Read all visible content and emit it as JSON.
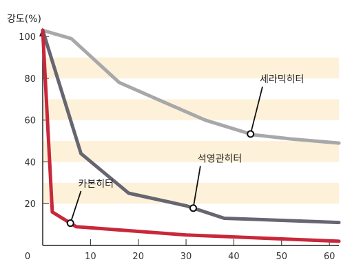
{
  "chart_data": {
    "type": "line",
    "title": "",
    "ylabel": "강도(%)",
    "xlabel": "",
    "xlim": [
      0,
      62
    ],
    "ylim": [
      0,
      105
    ],
    "x_ticks": [
      0,
      10,
      20,
      30,
      40,
      50,
      60
    ],
    "y_ticks": [
      20,
      40,
      60,
      80,
      100
    ],
    "grid": false,
    "background_bands": [
      [
        20,
        30
      ],
      [
        40,
        50
      ],
      [
        60,
        70
      ],
      [
        80,
        90
      ]
    ],
    "series": [
      {
        "name": "세라믹히터",
        "color": "#a8a8aa",
        "points": [
          [
            0,
            103
          ],
          [
            6,
            99
          ],
          [
            16,
            78
          ],
          [
            25,
            69
          ],
          [
            34,
            60
          ],
          [
            44,
            53
          ],
          [
            52,
            51
          ],
          [
            62,
            49
          ]
        ],
        "marker_x": 43.5,
        "label_at": [
          46,
          78
        ]
      },
      {
        "name": "석영관히터",
        "color": "#666672",
        "points": [
          [
            0,
            103
          ],
          [
            8,
            44
          ],
          [
            18,
            25
          ],
          [
            30,
            19
          ],
          [
            38,
            13
          ],
          [
            50,
            12
          ],
          [
            62,
            11
          ]
        ],
        "marker_x": 31.5,
        "label_at": [
          33,
          40
        ]
      },
      {
        "name": "카본히터",
        "color": "#c8283a",
        "points": [
          [
            0,
            103
          ],
          [
            2,
            16
          ],
          [
            7,
            9
          ],
          [
            30,
            5
          ],
          [
            62,
            2
          ]
        ],
        "marker_x": 5.8,
        "label_at": [
          8,
          28
        ]
      }
    ]
  }
}
